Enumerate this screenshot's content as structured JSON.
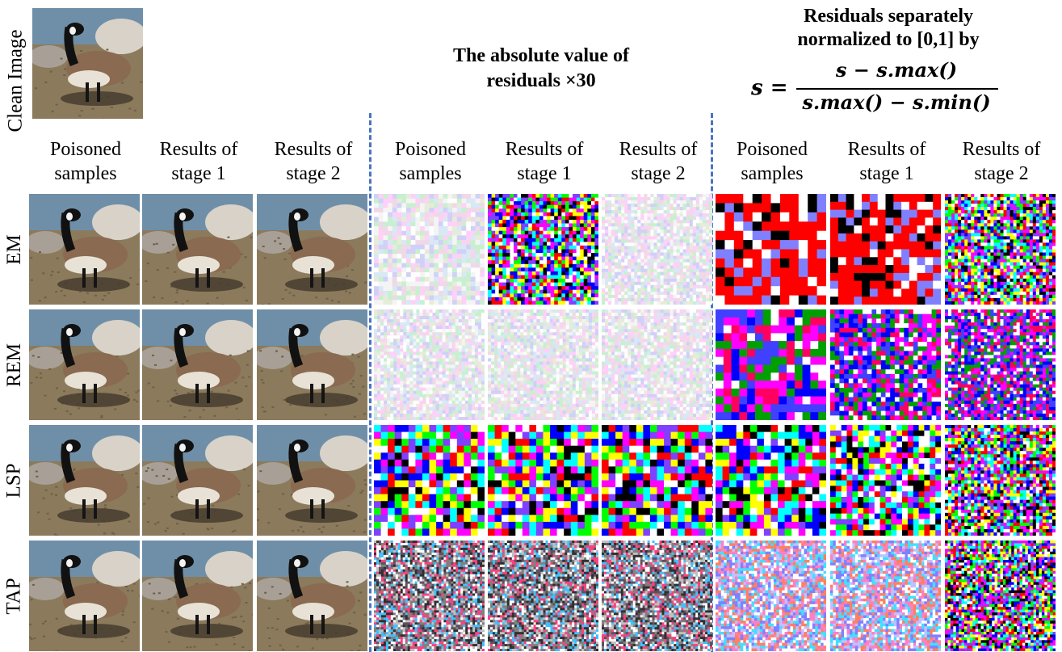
{
  "clean_image_label": "Clean Image",
  "titles": {
    "abs_residuals": "The absolute value of residuals ×30",
    "normalized_line1": "Residuals separately",
    "normalized_line2": "normalized to [0,1] by"
  },
  "formula": {
    "lhs": "s =",
    "numerator": "s − s.max()",
    "denominator": "s.max() − s.min()"
  },
  "column_headers": [
    [
      "Poisoned",
      "samples"
    ],
    [
      "Results of",
      "stage 1"
    ],
    [
      "Results of",
      "stage 2"
    ],
    [
      "Poisoned",
      "samples"
    ],
    [
      "Results of",
      "stage 1"
    ],
    [
      "Results of",
      "stage 2"
    ],
    [
      "Poisoned",
      "samples"
    ],
    [
      "Results of",
      "stage 1"
    ],
    [
      "Results of",
      "stage 2"
    ]
  ],
  "row_labels": [
    "EM",
    "REM",
    "LSP",
    "TAP"
  ],
  "colors": {
    "separator": "#4a74c0",
    "sky": "#6f8fa8",
    "ground": "#8b7a5c",
    "goose_body": "#8a6a50",
    "goose_neck": "#111111",
    "chin_strap": "#f2f2f2",
    "rock": "#d8d2c8"
  }
}
